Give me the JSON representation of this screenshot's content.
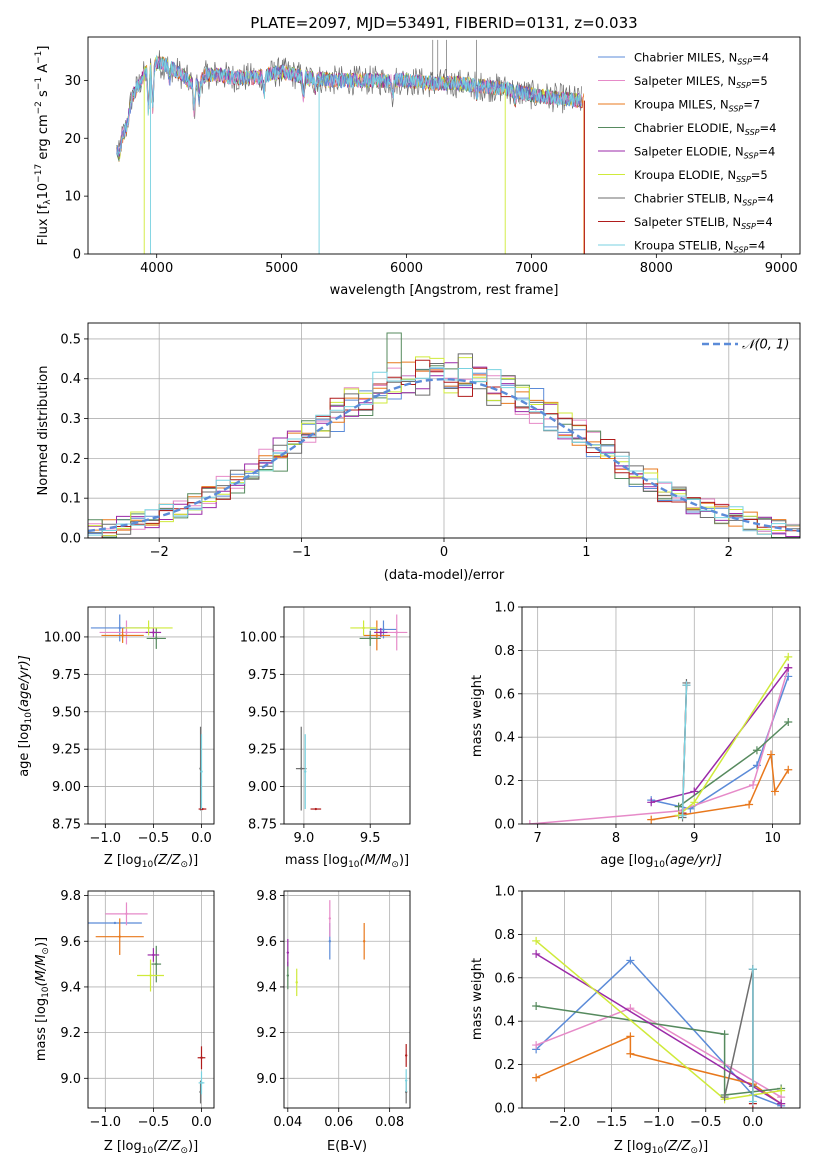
{
  "colors": {
    "chabrier_miles": "#5b8bd8",
    "salpeter_miles": "#e68ac8",
    "kroupa_miles": "#e8781c",
    "chabrier_elodie": "#568a5e",
    "salpeter_elodie": "#9b2aa8",
    "kroupa_elodie": "#cfea3a",
    "chabrier_stelib": "#6e6e6e",
    "salpeter_stelib": "#b01c1c",
    "kroupa_stelib": "#78d2e0"
  },
  "chart_data": [
    {
      "id": "spectrum",
      "type": "line",
      "title": "PLATE=2097, MJD=53491, FIBERID=0131, z=0.033",
      "xlabel": "wavelength [Angstrom, rest frame]",
      "ylabel": "Flux [f",
      "ylabel_lambda": "λ",
      "ylabel_rest": "10",
      "ylabel_exp1": "−17",
      "ylabel_unit": " erg cm",
      "ylabel_exp2": "−2",
      "ylabel_s": " s",
      "ylabel_exp3": "−1",
      "ylabel_A": " A",
      "ylabel_exp4": "−1",
      "ylabel_end": "]",
      "xlim": [
        3450,
        9150
      ],
      "ylim": [
        0,
        37.5
      ],
      "xticks": [
        "4000",
        "5000",
        "6000",
        "7000",
        "8000",
        "9000"
      ],
      "yticks": [
        "0",
        "10",
        "20",
        "30"
      ],
      "legend_location": "top-right",
      "legend": [
        {
          "name": "Chabrier MILES, N",
          "sub": "SSP",
          "tail": "=4",
          "color_key": "chabrier_miles"
        },
        {
          "name": "Salpeter MILES, N",
          "sub": "SSP",
          "tail": "=5",
          "color_key": "salpeter_miles"
        },
        {
          "name": "Kroupa MILES, N",
          "sub": "SSP",
          "tail": "=7",
          "color_key": "kroupa_miles"
        },
        {
          "name": "Chabrier ELODIE, N",
          "sub": "SSP",
          "tail": "=4",
          "color_key": "chabrier_elodie"
        },
        {
          "name": "Salpeter ELODIE, N",
          "sub": "SSP",
          "tail": "=4",
          "color_key": "salpeter_elodie"
        },
        {
          "name": "Kroupa ELODIE, N",
          "sub": "SSP",
          "tail": "=5",
          "color_key": "kroupa_elodie"
        },
        {
          "name": "Chabrier STELIB, N",
          "sub": "SSP",
          "tail": "=4",
          "color_key": "chabrier_stelib"
        },
        {
          "name": "Salpeter STELIB, N",
          "sub": "SSP",
          "tail": "=4",
          "color_key": "salpeter_stelib"
        },
        {
          "name": "Kroupa STELIB, N",
          "sub": "SSP",
          "tail": "=4",
          "color_key": "kroupa_stelib"
        }
      ],
      "continuum": [
        [
          3680,
          18
        ],
        [
          3700,
          17
        ],
        [
          3720,
          20
        ],
        [
          3760,
          22
        ],
        [
          3800,
          27
        ],
        [
          3850,
          29
        ],
        [
          3900,
          31
        ],
        [
          3950,
          32
        ],
        [
          4000,
          33
        ],
        [
          4100,
          32.5
        ],
        [
          4200,
          31
        ],
        [
          4300,
          29
        ],
        [
          4400,
          31
        ],
        [
          4500,
          31
        ],
        [
          4600,
          30.5
        ],
        [
          4800,
          30.5
        ],
        [
          5000,
          31.5
        ],
        [
          5200,
          30.5
        ],
        [
          5400,
          30
        ],
        [
          5600,
          30
        ],
        [
          5800,
          30
        ],
        [
          6000,
          30
        ],
        [
          6200,
          29.5
        ],
        [
          6400,
          29.5
        ],
        [
          6600,
          29
        ],
        [
          6800,
          28.5
        ],
        [
          7000,
          27.5
        ],
        [
          7200,
          27
        ],
        [
          7400,
          26.5
        ]
      ],
      "drops": [
        {
          "series": "kroupa_elodie",
          "x": 3900
        },
        {
          "series": "kroupa_stelib",
          "x": 3950
        },
        {
          "series": "kroupa_stelib",
          "x": 5300
        },
        {
          "series": "kroupa_elodie",
          "x": 6790
        },
        {
          "series": "kroupa_miles",
          "x": 7420
        },
        {
          "series": "salpeter_stelib",
          "x": 7425
        }
      ]
    },
    {
      "id": "residuals",
      "type": "line",
      "xlabel": "(data-model)/error",
      "ylabel": "Normed distribution",
      "xlim": [
        -2.5,
        2.5
      ],
      "ylim": [
        0,
        0.54
      ],
      "xticks": [
        "−2",
        "−1",
        "0",
        "1",
        "2"
      ],
      "yticks": [
        "0.0",
        "0.1",
        "0.2",
        "0.3",
        "0.4",
        "0.5"
      ],
      "legend": [
        {
          "name": "𝒩(0, 1)",
          "style": "dashed"
        }
      ],
      "legend_location": "top-right"
    },
    {
      "id": "age_vs_Z",
      "type": "scatter",
      "xlabel": "Z [log",
      "xlabel_sub": "10",
      "xlabel_rest": "(Z/Z",
      "xlabel_sun": "⊙",
      "xlabel_end": ")]",
      "ylabel": "age  [log",
      "ylabel_sub": "10",
      "ylabel_rest": "(age/yr)]",
      "xlim": [
        -1.18,
        0.13
      ],
      "ylim": [
        8.75,
        10.2
      ],
      "xticks": [
        "−1.0",
        "−0.5",
        "0.0"
      ],
      "yticks": [
        "8.75",
        "9.00",
        "9.25",
        "9.50",
        "9.75",
        "10.00"
      ],
      "points": [
        {
          "s": "chabrier_miles",
          "x": -0.85,
          "y": 10.06,
          "xe": 0.3,
          "ye": 0.09
        },
        {
          "s": "salpeter_miles",
          "x": -0.78,
          "y": 10.03,
          "xe": 0.28,
          "ye": 0.08
        },
        {
          "s": "kroupa_miles",
          "x": -0.82,
          "y": 10.01,
          "xe": 0.22,
          "ye": 0.05
        },
        {
          "s": "chabrier_elodie",
          "x": -0.47,
          "y": 9.99,
          "xe": 0.1,
          "ye": 0.07
        },
        {
          "s": "salpeter_elodie",
          "x": -0.5,
          "y": 10.03,
          "xe": 0.08,
          "ye": 0.03
        },
        {
          "s": "kroupa_elodie",
          "x": -0.55,
          "y": 10.06,
          "xe": 0.25,
          "ye": 0.05
        },
        {
          "s": "chabrier_stelib",
          "x": -0.01,
          "y": 9.12,
          "xe": 0.0,
          "ye": 0.28
        },
        {
          "s": "salpeter_stelib",
          "x": 0.01,
          "y": 8.85,
          "xe": 0.04,
          "ye": 0.0
        },
        {
          "s": "kroupa_stelib",
          "x": 0.0,
          "y": 9.1,
          "xe": 0.01,
          "ye": 0.25
        }
      ]
    },
    {
      "id": "age_vs_mass",
      "type": "scatter",
      "xlabel": "mass [log",
      "xlabel_sub": "10",
      "xlabel_rest": "(M/M",
      "xlabel_sun": "⊙",
      "xlabel_end": ")]",
      "xlim": [
        8.85,
        9.8
      ],
      "ylim": [
        8.75,
        10.2
      ],
      "xticks": [
        "9.0",
        "9.5"
      ],
      "yticks": [
        "8.75",
        "9.00",
        "9.25",
        "9.50",
        "9.75",
        "10.00"
      ],
      "points": [
        {
          "s": "chabrier_miles",
          "x": 9.6,
          "y": 10.05,
          "xe": 0.1,
          "ye": 0.06
        },
        {
          "s": "salpeter_miles",
          "x": 9.7,
          "y": 10.03,
          "xe": 0.08,
          "ye": 0.12
        },
        {
          "s": "kroupa_miles",
          "x": 9.55,
          "y": 10.01,
          "xe": 0.1,
          "ye": 0.1
        },
        {
          "s": "chabrier_elodie",
          "x": 9.5,
          "y": 9.99,
          "xe": 0.08,
          "ye": 0.05
        },
        {
          "s": "salpeter_elodie",
          "x": 9.58,
          "y": 10.03,
          "xe": 0.05,
          "ye": 0.03
        },
        {
          "s": "kroupa_elodie",
          "x": 9.45,
          "y": 10.06,
          "xe": 0.1,
          "ye": 0.05
        },
        {
          "s": "chabrier_stelib",
          "x": 8.98,
          "y": 9.12,
          "xe": 0.04,
          "ye": 0.28
        },
        {
          "s": "salpeter_stelib",
          "x": 9.09,
          "y": 8.85,
          "xe": 0.04,
          "ye": 0.0
        },
        {
          "s": "kroupa_stelib",
          "x": 9.01,
          "y": 9.1,
          "xe": 0.0,
          "ye": 0.25
        }
      ]
    },
    {
      "id": "weight_vs_age",
      "type": "line",
      "xlabel": "age  [log",
      "xlabel_sub": "10",
      "xlabel_rest": "(age/yr)]",
      "ylabel": "mass weight",
      "xlim": [
        6.8,
        10.35
      ],
      "ylim": [
        0,
        1.0
      ],
      "xticks": [
        "7",
        "8",
        "9",
        "10"
      ],
      "yticks": [
        "0.0",
        "0.2",
        "0.4",
        "0.6",
        "0.8",
        "1.0"
      ],
      "series": [
        {
          "s": "chabrier_miles",
          "points": [
            [
              8.45,
              0.11
            ],
            [
              8.95,
              0.07
            ],
            [
              9.8,
              0.27
            ],
            [
              10.2,
              0.68
            ]
          ]
        },
        {
          "s": "salpeter_miles",
          "points": [
            [
              6.9,
              0.0
            ],
            [
              8.8,
              0.06
            ],
            [
              9.75,
              0.18
            ],
            [
              10.2,
              0.72
            ]
          ]
        },
        {
          "s": "kroupa_miles",
          "points": [
            [
              8.45,
              0.02
            ],
            [
              9.7,
              0.09
            ],
            [
              9.98,
              0.32
            ],
            [
              10.03,
              0.15
            ],
            [
              10.2,
              0.25
            ]
          ]
        },
        {
          "s": "chabrier_elodie",
          "points": [
            [
              8.8,
              0.08
            ],
            [
              9.8,
              0.34
            ],
            [
              10.2,
              0.47
            ]
          ]
        },
        {
          "s": "salpeter_elodie",
          "points": [
            [
              8.45,
              0.1
            ],
            [
              9.0,
              0.15
            ],
            [
              10.2,
              0.72
            ]
          ]
        },
        {
          "s": "kroupa_elodie",
          "points": [
            [
              8.8,
              0.04
            ],
            [
              9.0,
              0.1
            ],
            [
              10.2,
              0.77
            ]
          ]
        },
        {
          "s": "chabrier_stelib",
          "points": [
            [
              8.85,
              0.03
            ],
            [
              8.9,
              0.65
            ]
          ]
        },
        {
          "s": "salpeter_stelib",
          "points": [
            [
              8.85,
              0.05
            ],
            [
              8.9,
              0.64
            ]
          ]
        },
        {
          "s": "kroupa_stelib",
          "points": [
            [
              8.85,
              0.04
            ],
            [
              8.9,
              0.64
            ]
          ]
        }
      ]
    },
    {
      "id": "mass_vs_Z",
      "type": "scatter",
      "xlabel": "Z [log",
      "xlabel_sub": "10",
      "xlabel_rest": "(Z/Z",
      "xlabel_sun": "⊙",
      "xlabel_end": ")]",
      "ylabel": "mass [log",
      "ylabel_sub": "10",
      "ylabel_rest": "(M/M",
      "ylabel_sun": "⊙",
      "ylabel_end": ")]",
      "xlim": [
        -1.18,
        0.13
      ],
      "ylim": [
        8.87,
        9.82
      ],
      "xticks": [
        "−1.0",
        "−0.5",
        "0.0"
      ],
      "yticks": [
        "9.0",
        "9.2",
        "9.4",
        "9.6",
        "9.8"
      ],
      "points": [
        {
          "s": "chabrier_miles",
          "x": -0.9,
          "y": 9.68,
          "xe": 0.28,
          "ye": 0.0
        },
        {
          "s": "salpeter_miles",
          "x": -0.78,
          "y": 9.72,
          "xe": 0.22,
          "ye": 0.05
        },
        {
          "s": "kroupa_miles",
          "x": -0.85,
          "y": 9.62,
          "xe": 0.25,
          "ye": 0.08
        },
        {
          "s": "chabrier_elodie",
          "x": -0.47,
          "y": 9.5,
          "xe": 0.05,
          "ye": 0.08
        },
        {
          "s": "salpeter_elodie",
          "x": -0.5,
          "y": 9.54,
          "xe": 0.06,
          "ye": 0.03
        },
        {
          "s": "kroupa_elodie",
          "x": -0.53,
          "y": 9.45,
          "xe": 0.14,
          "ye": 0.07
        },
        {
          "s": "chabrier_stelib",
          "x": -0.01,
          "y": 8.94,
          "xe": 0.0,
          "ye": 0.05
        },
        {
          "s": "salpeter_stelib",
          "x": 0.0,
          "y": 9.09,
          "xe": 0.04,
          "ye": 0.05
        },
        {
          "s": "kroupa_stelib",
          "x": 0.0,
          "y": 8.98,
          "xe": 0.03,
          "ye": 0.05
        }
      ]
    },
    {
      "id": "mass_vs_ebv",
      "type": "scatter",
      "xlabel": "E(B-V)",
      "xlim": [
        0.0385,
        0.088
      ],
      "ylim": [
        8.87,
        9.82
      ],
      "xticks": [
        "0.04",
        "0.06",
        "0.08"
      ],
      "yticks": [
        "9.0",
        "9.2",
        "9.4",
        "9.6",
        "9.8"
      ],
      "points": [
        {
          "s": "chabrier_miles",
          "x": 0.0565,
          "y": 9.6,
          "ye": 0.08
        },
        {
          "s": "salpeter_miles",
          "x": 0.0565,
          "y": 9.7,
          "ye": 0.08
        },
        {
          "s": "kroupa_miles",
          "x": 0.07,
          "y": 9.6,
          "ye": 0.08
        },
        {
          "s": "chabrier_elodie",
          "x": 0.04,
          "y": 9.45,
          "ye": 0.06
        },
        {
          "s": "salpeter_elodie",
          "x": 0.04,
          "y": 9.55,
          "ye": 0.06
        },
        {
          "s": "kroupa_elodie",
          "x": 0.0435,
          "y": 9.42,
          "ye": 0.06
        },
        {
          "s": "chabrier_stelib",
          "x": 0.0865,
          "y": 8.94,
          "ye": 0.05
        },
        {
          "s": "salpeter_stelib",
          "x": 0.0865,
          "y": 9.1,
          "ye": 0.05
        },
        {
          "s": "kroupa_stelib",
          "x": 0.0865,
          "y": 8.99,
          "ye": 0.05
        }
      ]
    },
    {
      "id": "weight_vs_Z",
      "type": "line",
      "xlabel": "Z [log",
      "xlabel_sub": "10",
      "xlabel_rest": "(Z/Z",
      "xlabel_sun": "⊙",
      "xlabel_end": ")]",
      "ylabel": "mass weight",
      "xlim": [
        -2.45,
        0.5
      ],
      "ylim": [
        0,
        1.0
      ],
      "xticks": [
        "−2.0",
        "−1.5",
        "−1.0",
        "−0.5",
        "0.0"
      ],
      "yticks": [
        "0.0",
        "0.2",
        "0.4",
        "0.6",
        "0.8",
        "1.0"
      ],
      "series": [
        {
          "s": "chabrier_miles",
          "points": [
            [
              -2.3,
              0.27
            ],
            [
              -1.3,
              0.68
            ],
            [
              0.0,
              0.06
            ],
            [
              0.3,
              0.01
            ]
          ]
        },
        {
          "s": "salpeter_miles",
          "points": [
            [
              -2.3,
              0.29
            ],
            [
              -1.3,
              0.46
            ],
            [
              0.3,
              0.05
            ]
          ]
        },
        {
          "s": "kroupa_miles",
          "points": [
            [
              -2.3,
              0.14
            ],
            [
              -1.3,
              0.33
            ],
            [
              -1.3,
              0.25
            ],
            [
              0.0,
              0.11
            ],
            [
              0.3,
              0.02
            ]
          ]
        },
        {
          "s": "chabrier_elodie",
          "points": [
            [
              -2.3,
              0.47
            ],
            [
              -0.3,
              0.34
            ],
            [
              -0.3,
              0.06
            ],
            [
              0.3,
              0.09
            ]
          ]
        },
        {
          "s": "salpeter_elodie",
          "points": [
            [
              -2.3,
              0.71
            ],
            [
              0.3,
              0.02
            ]
          ]
        },
        {
          "s": "kroupa_elodie",
          "points": [
            [
              -2.3,
              0.77
            ],
            [
              -0.3,
              0.04
            ],
            [
              0.3,
              0.08
            ]
          ]
        },
        {
          "s": "chabrier_stelib",
          "points": [
            [
              -0.3,
              0.05
            ],
            [
              0.0,
              0.64
            ],
            [
              0.0,
              0.1
            ]
          ]
        },
        {
          "s": "salpeter_stelib",
          "points": [
            [
              0.0,
              0.64
            ],
            [
              0.0,
              0.02
            ]
          ]
        },
        {
          "s": "kroupa_stelib",
          "points": [
            [
              0.0,
              0.64
            ],
            [
              0.0,
              0.03
            ]
          ]
        }
      ]
    }
  ]
}
